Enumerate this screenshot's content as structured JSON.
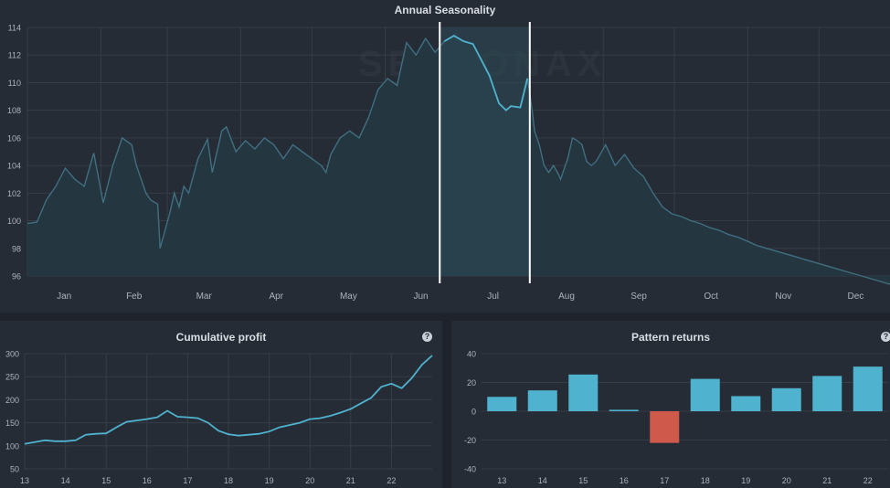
{
  "watermark": "SEASONAX",
  "chart_data": [
    {
      "type": "line",
      "title": "Annual Seasonality",
      "xlabel": "",
      "ylabel": "",
      "ylim": [
        96,
        114
      ],
      "yticks": [
        96,
        98,
        100,
        102,
        104,
        106,
        108,
        110,
        112,
        114
      ],
      "month_labels": [
        "Jan",
        "Feb",
        "Mar",
        "Apr",
        "May",
        "Jun",
        "Jul",
        "Aug",
        "Sep",
        "Oct",
        "Nov",
        "Dec"
      ],
      "highlight_window": {
        "start": "Jun 24",
        "end": "Aug 1"
      },
      "grid": true,
      "x_day": [
        0,
        4,
        8,
        12,
        16,
        20,
        24,
        28,
        32,
        36,
        40,
        44,
        46,
        50,
        52,
        55,
        56,
        60,
        62,
        64,
        66,
        68,
        72,
        76,
        78,
        82,
        84,
        88,
        92,
        96,
        100,
        104,
        108,
        112,
        116,
        120,
        124,
        126,
        128,
        132,
        136,
        140,
        144,
        148,
        152,
        156,
        160,
        164,
        168,
        172,
        176,
        180,
        184,
        188,
        192,
        195,
        197,
        199,
        202,
        204,
        208,
        211,
        213,
        214,
        216,
        218,
        220,
        222,
        224,
        225,
        226,
        228,
        230,
        232,
        234,
        236,
        238,
        240,
        244,
        248,
        252,
        256,
        260,
        264,
        268,
        272,
        276,
        280,
        284,
        288,
        292,
        296,
        300,
        304,
        308,
        312,
        316,
        320,
        324,
        328,
        332,
        336,
        340,
        344,
        348,
        352,
        356,
        360,
        364
      ],
      "values": [
        99.8,
        99.9,
        101.5,
        102.5,
        103.8,
        103.0,
        102.5,
        104.9,
        101.3,
        104.0,
        106.0,
        105.5,
        104.0,
        102.0,
        101.5,
        101.2,
        98.0,
        100.5,
        102.0,
        101.0,
        102.5,
        102.0,
        104.5,
        105.9,
        103.5,
        106.5,
        106.8,
        105.0,
        105.8,
        105.2,
        106.0,
        105.5,
        104.5,
        105.5,
        105.0,
        104.5,
        104.0,
        103.5,
        104.8,
        106.0,
        106.5,
        106.0,
        107.5,
        109.5,
        110.3,
        109.8,
        112.9,
        112.0,
        113.2,
        112.2,
        113.0,
        113.4,
        113.0,
        112.8,
        111.5,
        110.5,
        109.5,
        108.5,
        108.0,
        108.3,
        108.2,
        110.3,
        108.0,
        106.5,
        105.5,
        104.0,
        103.5,
        104.0,
        103.4,
        103.0,
        103.5,
        104.5,
        106.0,
        105.8,
        105.5,
        104.3,
        104.0,
        104.3,
        105.5,
        104.0,
        104.8,
        103.8,
        103.2,
        102.0,
        101.0,
        100.5,
        100.3,
        100.0,
        99.8,
        99.5,
        99.3,
        99.0,
        98.8,
        98.5,
        98.2,
        98.0,
        97.8,
        97.6,
        97.4,
        97.2,
        97.0,
        96.8,
        96.6,
        96.4,
        96.2,
        96.0,
        95.8,
        95.6,
        95.4
      ]
    },
    {
      "type": "line",
      "title": "Cumulative profit",
      "ylim": [
        50,
        300
      ],
      "yticks": [
        50,
        100,
        150,
        200,
        250,
        300
      ],
      "xticks": [
        "13",
        "14",
        "15",
        "16",
        "17",
        "18",
        "19",
        "20",
        "21",
        "22"
      ],
      "x": [
        13.0,
        13.25,
        13.5,
        13.75,
        14.0,
        14.25,
        14.5,
        14.75,
        15.0,
        15.25,
        15.5,
        15.75,
        16.0,
        16.25,
        16.5,
        16.75,
        17.0,
        17.25,
        17.5,
        17.75,
        18.0,
        18.25,
        18.5,
        18.75,
        19.0,
        19.25,
        19.5,
        19.75,
        20.0,
        20.25,
        20.5,
        20.75,
        21.0,
        21.25,
        21.5,
        21.75,
        22.0,
        22.25,
        22.5,
        22.75,
        23.0
      ],
      "values": [
        104,
        108,
        112,
        110,
        110,
        112,
        124,
        126,
        127,
        140,
        152,
        155,
        158,
        162,
        176,
        163,
        162,
        160,
        150,
        133,
        125,
        122,
        124,
        126,
        131,
        140,
        145,
        150,
        158,
        160,
        165,
        172,
        180,
        192,
        204,
        228,
        235,
        225,
        247,
        276,
        296
      ],
      "grid": true
    },
    {
      "type": "bar",
      "title": "Pattern returns",
      "categories": [
        "13",
        "14",
        "15",
        "16",
        "17",
        "18",
        "19",
        "20",
        "21",
        "22"
      ],
      "values": [
        10,
        14.5,
        25.5,
        1,
        -22,
        22.5,
        10.5,
        16,
        24.5,
        31
      ],
      "ylim": [
        -40,
        40
      ],
      "yticks": [
        -40,
        -20,
        0,
        20,
        40
      ],
      "colors": {
        "positive": "#4fb3cf",
        "negative": "#cf5a4c"
      },
      "grid": true
    }
  ],
  "icons": {
    "help": "?"
  },
  "colors": {
    "line": "#4fb3cf",
    "fill": "#2b4450",
    "highlight": "#ffffff",
    "grid": "#353d47",
    "axis_text": "#aab3bd"
  }
}
